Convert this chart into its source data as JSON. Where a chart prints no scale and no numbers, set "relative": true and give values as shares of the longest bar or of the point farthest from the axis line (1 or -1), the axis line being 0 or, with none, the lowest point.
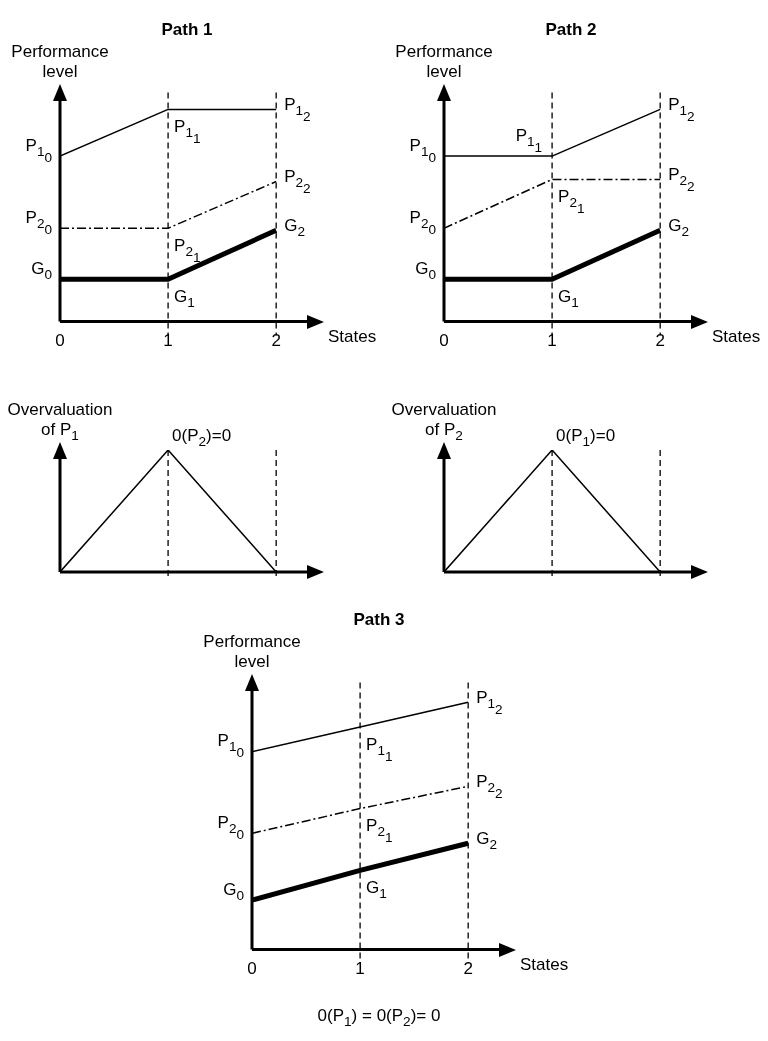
{
  "chart_data": [
    {
      "type": "line",
      "title": "Path 1",
      "ylabel": "Performance level",
      "xlabel": "States",
      "relative": true,
      "x": [
        0,
        1,
        2
      ],
      "xlim": [
        0,
        2.35
      ],
      "xticks": [
        0,
        1,
        2
      ],
      "series": [
        {
          "color": "#000000",
          "line_style": "solid",
          "values": [
            0.78,
            1,
            1
          ]
        },
        {
          "color": "#000000",
          "line_style": "dashed",
          "values": [
            0.44,
            0.44,
            0.66
          ]
        },
        {
          "color": "#000000",
          "line_style": "solid",
          "values": [
            0.2,
            0.2,
            0.43
          ]
        }
      ],
      "ref_lines": [
        {
          "axis": "x",
          "value": 1,
          "line_style": "dashed"
        },
        {
          "axis": "x",
          "value": 2,
          "line_style": "dashed"
        }
      ],
      "annotations": [
        {
          "text": "P$_{1}$$_{0}$",
          "x": 0,
          "y": 0.78
        },
        {
          "text": "P$_{1}$$_{1}$",
          "x": 1,
          "y": 1
        },
        {
          "text": "P$_{1}$$_{2}$",
          "x": 2,
          "y": 1
        },
        {
          "text": "P$_{2}$$_{0}$",
          "x": 0,
          "y": 0.44
        },
        {
          "text": "P$_{2}$$_{1}$",
          "x": 1,
          "y": 0.44
        },
        {
          "text": "P$_{2}$$_{2}$",
          "x": 2,
          "y": 0.66
        },
        {
          "text": "G$_{0}$",
          "x": 0,
          "y": 0.2
        },
        {
          "text": "G$_{1}$",
          "x": 1,
          "y": 0.2
        },
        {
          "text": "G$_{2}$",
          "x": 2,
          "y": 0.43
        }
      ]
    },
    {
      "type": "line",
      "title": "Path 2",
      "ylabel": "Performance level",
      "xlabel": "States",
      "relative": true,
      "x": [
        0,
        1,
        2
      ],
      "xlim": [
        0,
        2.35
      ],
      "xticks": [
        0,
        1,
        2
      ],
      "series": [
        {
          "color": "#000000",
          "line_style": "solid",
          "values": [
            0.78,
            0.78,
            1
          ]
        },
        {
          "color": "#000000",
          "line_style": "dashed",
          "values": [
            0.44,
            0.67,
            0.67
          ]
        },
        {
          "color": "#000000",
          "line_style": "solid",
          "values": [
            0.2,
            0.2,
            0.43
          ]
        }
      ],
      "ref_lines": [
        {
          "axis": "x",
          "value": 1,
          "line_style": "dashed"
        },
        {
          "axis": "x",
          "value": 2,
          "line_style": "dashed"
        }
      ],
      "annotations": [
        {
          "text": "P$_{1}$$_{0}$",
          "x": 0,
          "y": 0.78
        },
        {
          "text": "P$_{1}$$_{1}$",
          "x": 1,
          "y": 0.78
        },
        {
          "text": "P$_{1}$$_{2}$",
          "x": 2,
          "y": 1
        },
        {
          "text": "P$_{2}$$_{0}$",
          "x": 0,
          "y": 0.44
        },
        {
          "text": "P$_{2}$$_{1}$",
          "x": 1,
          "y": 0.67
        },
        {
          "text": "P$_{2}$$_{2}$",
          "x": 2,
          "y": 0.67
        },
        {
          "text": "G$_{0}$",
          "x": 0,
          "y": 0.2
        },
        {
          "text": "G$_{1}$",
          "x": 1,
          "y": 0.2
        },
        {
          "text": "G$_{2}$",
          "x": 2,
          "y": 0.43
        }
      ]
    },
    {
      "type": "line",
      "ylabel": "Overvaluation of P$_{1}$",
      "relative": true,
      "x": [
        0,
        1,
        2
      ],
      "xlim": [
        0,
        2.35
      ],
      "tick_labels": false,
      "values": [
        0,
        1,
        0
      ],
      "color": "#000000",
      "ref_lines": [
        {
          "axis": "x",
          "value": 1,
          "line_style": "dashed"
        },
        {
          "axis": "x",
          "value": 2,
          "line_style": "dashed"
        }
      ],
      "annotations": [
        "0(P$_{2}$)=0"
      ]
    },
    {
      "type": "line",
      "ylabel": "Overvaluation of P$_{2}$",
      "relative": true,
      "x": [
        0,
        1,
        2
      ],
      "xlim": [
        0,
        2.35
      ],
      "tick_labels": false,
      "values": [
        0,
        1,
        0
      ],
      "color": "#000000",
      "ref_lines": [
        {
          "axis": "x",
          "value": 1,
          "line_style": "dashed"
        },
        {
          "axis": "x",
          "value": 2,
          "line_style": "dashed"
        }
      ],
      "annotations": [
        "0(P$_{1}$)=0"
      ]
    },
    {
      "type": "line",
      "title": "Path 3",
      "ylabel": "Performance level",
      "xlabel": "States",
      "relative": true,
      "x": [
        0,
        1,
        2
      ],
      "xlim": [
        0,
        2.35
      ],
      "xticks": [
        0,
        1,
        2
      ],
      "series": [
        {
          "color": "#000000",
          "line_style": "solid",
          "values": [
            0.8,
            0.9,
            1
          ]
        },
        {
          "color": "#000000",
          "line_style": "dashed",
          "values": [
            0.47,
            0.57,
            0.66
          ]
        },
        {
          "color": "#000000",
          "line_style": "solid",
          "values": [
            0.2,
            0.32,
            0.43
          ]
        }
      ],
      "ref_lines": [
        {
          "axis": "x",
          "value": 1,
          "line_style": "dashed"
        },
        {
          "axis": "x",
          "value": 2,
          "line_style": "dashed"
        }
      ],
      "annotations": [
        {
          "text": "P$_{1}$$_{0}$",
          "x": 0,
          "y": 0.8
        },
        {
          "text": "P$_{1}$$_{1}$",
          "x": 1,
          "y": 0.9
        },
        {
          "text": "P$_{1}$$_{2}$",
          "x": 2,
          "y": 1
        },
        {
          "text": "P$_{2}$$_{0}$",
          "x": 0,
          "y": 0.47
        },
        {
          "text": "P$_{2}$$_{1}$",
          "x": 1,
          "y": 0.57
        },
        {
          "text": "P$_{2}$$_{2}$",
          "x": 2,
          "y": 0.66
        },
        {
          "text": "G$_{0}$",
          "x": 0,
          "y": 0.2
        },
        {
          "text": "G$_{1}$",
          "x": 1,
          "y": 0.32
        },
        {
          "text": "G$_{2}$",
          "x": 2,
          "y": 0.43
        },
        "0(P$_{1}$) = 0(P$_{2}$)= 0"
      ]
    }
  ]
}
